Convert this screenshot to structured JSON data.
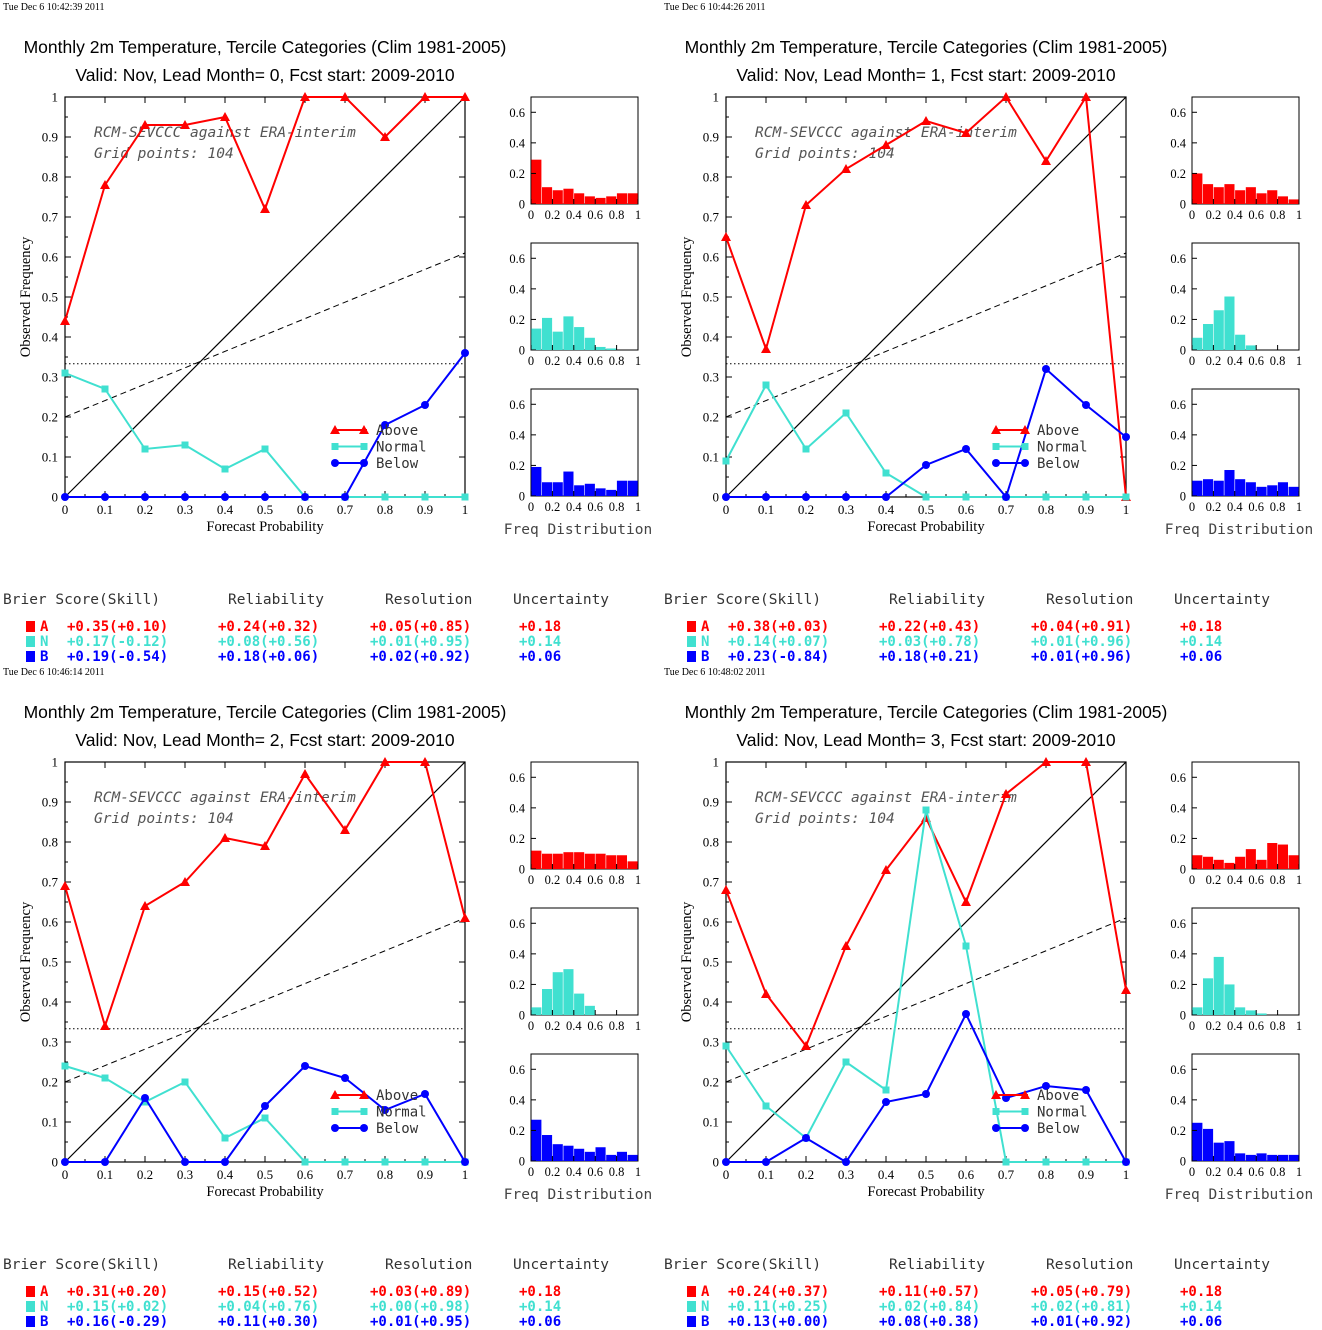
{
  "colors": {
    "above": "#ff0000",
    "normal": "#40e0d0",
    "below": "#0000ff",
    "axis": "#000000"
  },
  "legend": {
    "above": "Above",
    "normal": "Normal",
    "below": "Below"
  },
  "annotation": {
    "line1": "RCM-SEVCCC against ERA-interim",
    "line2": "Grid points:  104"
  },
  "axis_labels": {
    "x": "Forecast Probability",
    "y": "Observed Frequency",
    "hist": "Freq Distribution"
  },
  "score_headers": {
    "brier": "Brier Score(Skill)",
    "reliability": "Reliability",
    "resolution": "Resolution",
    "uncertainty": "Uncertainty"
  },
  "category_letters": {
    "above": "A",
    "normal": "N",
    "below": "B"
  },
  "ticks": {
    "x": [
      "0",
      "0.1",
      "0.2",
      "0.3",
      "0.4",
      "0.5",
      "0.6",
      "0.7",
      "0.8",
      "0.9",
      "1"
    ],
    "y": [
      "0",
      "0.1",
      "0.2",
      "0.3",
      "0.4",
      "0.5",
      "0.6",
      "0.7",
      "0.8",
      "0.9",
      "1"
    ],
    "hx": [
      "0",
      "0.2",
      "0.4",
      "0.6",
      "0.8",
      "1"
    ],
    "hy": [
      "0",
      "0.2",
      "0.4",
      "0.6"
    ]
  },
  "chart_data": [
    {
      "type": "line",
      "timestamp": "Tue Dec  6 10:42:39 2011",
      "title": "Monthly 2m Temperature, Tercile Categories (Clim 1981-2005)",
      "subtitle": "Valid: Nov, Lead Month= 0, Fcst start: 2009-2010",
      "xlabel": "Forecast Probability",
      "ylabel": "Observed Frequency",
      "xlim": [
        0,
        1
      ],
      "ylim": [
        0,
        1
      ],
      "x": [
        0,
        0.1,
        0.2,
        0.3,
        0.4,
        0.5,
        0.6,
        0.7,
        0.8,
        0.9,
        1
      ],
      "series": [
        {
          "name": "Above",
          "values": [
            0.44,
            0.78,
            0.93,
            0.93,
            0.95,
            0.72,
            1.0,
            1.0,
            0.9,
            1.0,
            1.0
          ]
        },
        {
          "name": "Normal",
          "values": [
            0.31,
            0.27,
            0.12,
            0.13,
            0.07,
            0.12,
            0,
            0,
            0,
            0,
            0
          ]
        },
        {
          "name": "Below",
          "values": [
            0,
            0,
            0,
            0,
            0,
            0,
            0,
            0,
            0.18,
            0.23,
            0.36
          ]
        }
      ],
      "histograms": {
        "above": [
          0.29,
          0.11,
          0.09,
          0.1,
          0.07,
          0.05,
          0.04,
          0.05,
          0.07,
          0.07
        ],
        "normal": [
          0.14,
          0.21,
          0.12,
          0.22,
          0.15,
          0.08,
          0.02,
          0.01,
          0,
          0
        ],
        "below": [
          0.19,
          0.09,
          0.09,
          0.16,
          0.07,
          0.08,
          0.05,
          0.04,
          0.1,
          0.1
        ]
      },
      "scores": {
        "above": {
          "brier": "+0.35(+0.10)",
          "reliability": "+0.24(+0.32)",
          "resolution": "+0.05(+0.85)",
          "uncertainty": "+0.18"
        },
        "normal": {
          "brier": "+0.17(-0.12)",
          "reliability": "+0.08(+0.56)",
          "resolution": "+0.01(+0.95)",
          "uncertainty": "+0.14"
        },
        "below": {
          "brier": "+0.19(-0.54)",
          "reliability": "+0.18(+0.06)",
          "resolution": "+0.02(+0.92)",
          "uncertainty": "+0.06"
        }
      }
    },
    {
      "type": "line",
      "timestamp": "Tue Dec  6 10:44:26 2011",
      "title": "Monthly 2m Temperature, Tercile Categories (Clim 1981-2005)",
      "subtitle": "Valid: Nov, Lead Month= 1, Fcst start: 2009-2010",
      "xlabel": "Forecast Probability",
      "ylabel": "Observed Frequency",
      "xlim": [
        0,
        1
      ],
      "ylim": [
        0,
        1
      ],
      "x": [
        0,
        0.1,
        0.2,
        0.3,
        0.4,
        0.5,
        0.6,
        0.7,
        0.8,
        0.9,
        1
      ],
      "series": [
        {
          "name": "Above",
          "values": [
            0.65,
            0.37,
            0.73,
            0.82,
            0.88,
            0.94,
            0.91,
            1.0,
            0.84,
            1.0,
            0
          ]
        },
        {
          "name": "Normal",
          "values": [
            0.09,
            0.28,
            0.12,
            0.21,
            0.06,
            0,
            0,
            0,
            0,
            0,
            0
          ]
        },
        {
          "name": "Below",
          "values": [
            0,
            0,
            0,
            0,
            0,
            0.08,
            0.12,
            0,
            0.32,
            0.23,
            0.15
          ]
        }
      ],
      "histograms": {
        "above": [
          0.2,
          0.13,
          0.11,
          0.13,
          0.09,
          0.11,
          0.07,
          0.09,
          0.05,
          0.03
        ],
        "normal": [
          0.08,
          0.17,
          0.26,
          0.35,
          0.1,
          0.03,
          0,
          0,
          0,
          0
        ],
        "below": [
          0.1,
          0.11,
          0.1,
          0.17,
          0.11,
          0.09,
          0.06,
          0.07,
          0.09,
          0.06
        ]
      },
      "scores": {
        "above": {
          "brier": "+0.38(+0.03)",
          "reliability": "+0.22(+0.43)",
          "resolution": "+0.04(+0.91)",
          "uncertainty": "+0.18"
        },
        "normal": {
          "brier": "+0.14(+0.07)",
          "reliability": "+0.03(+0.78)",
          "resolution": "+0.01(+0.96)",
          "uncertainty": "+0.14"
        },
        "below": {
          "brier": "+0.23(-0.84)",
          "reliability": "+0.18(+0.21)",
          "resolution": "+0.01(+0.96)",
          "uncertainty": "+0.06"
        }
      }
    },
    {
      "type": "line",
      "timestamp": "Tue Dec  6 10:46:14 2011",
      "title": "Monthly 2m Temperature, Tercile Categories (Clim 1981-2005)",
      "subtitle": "Valid: Nov, Lead Month= 2, Fcst start: 2009-2010",
      "xlabel": "Forecast Probability",
      "ylabel": "Observed Frequency",
      "xlim": [
        0,
        1
      ],
      "ylim": [
        0,
        1
      ],
      "x": [
        0,
        0.1,
        0.2,
        0.3,
        0.4,
        0.5,
        0.6,
        0.7,
        0.8,
        0.9,
        1
      ],
      "series": [
        {
          "name": "Above",
          "values": [
            0.69,
            0.34,
            0.64,
            0.7,
            0.81,
            0.79,
            0.97,
            0.83,
            1.0,
            1.0,
            0.61
          ]
        },
        {
          "name": "Normal",
          "values": [
            0.24,
            0.21,
            0.15,
            0.2,
            0.06,
            0.11,
            0,
            0,
            0,
            0,
            0
          ]
        },
        {
          "name": "Below",
          "values": [
            0,
            0,
            0.16,
            0,
            0,
            0.14,
            0.24,
            0.21,
            0.13,
            0.17,
            0
          ]
        }
      ],
      "histograms": {
        "above": [
          0.12,
          0.1,
          0.1,
          0.11,
          0.11,
          0.1,
          0.1,
          0.09,
          0.09,
          0.05
        ],
        "normal": [
          0.05,
          0.17,
          0.28,
          0.3,
          0.14,
          0.06,
          0,
          0,
          0,
          0
        ],
        "below": [
          0.27,
          0.17,
          0.11,
          0.1,
          0.08,
          0.06,
          0.09,
          0.04,
          0.06,
          0.04
        ]
      },
      "scores": {
        "above": {
          "brier": "+0.31(+0.20)",
          "reliability": "+0.15(+0.52)",
          "resolution": "+0.03(+0.89)",
          "uncertainty": "+0.18"
        },
        "normal": {
          "brier": "+0.15(+0.02)",
          "reliability": "+0.04(+0.76)",
          "resolution": "+0.00(+0.98)",
          "uncertainty": "+0.14"
        },
        "below": {
          "brier": "+0.16(-0.29)",
          "reliability": "+0.11(+0.30)",
          "resolution": "+0.01(+0.95)",
          "uncertainty": "+0.06"
        }
      }
    },
    {
      "type": "line",
      "timestamp": "Tue Dec  6 10:48:02 2011",
      "title": "Monthly 2m Temperature, Tercile Categories (Clim 1981-2005)",
      "subtitle": "Valid: Nov, Lead Month= 3, Fcst start: 2009-2010",
      "xlabel": "Forecast Probability",
      "ylabel": "Observed Frequency",
      "xlim": [
        0,
        1
      ],
      "ylim": [
        0,
        1
      ],
      "x": [
        0,
        0.1,
        0.2,
        0.3,
        0.4,
        0.5,
        0.6,
        0.7,
        0.8,
        0.9,
        1
      ],
      "series": [
        {
          "name": "Above",
          "values": [
            0.68,
            0.42,
            0.29,
            0.54,
            0.73,
            0.86,
            0.65,
            0.92,
            1.0,
            1.0,
            0.43
          ]
        },
        {
          "name": "Normal",
          "values": [
            0.29,
            0.14,
            0.06,
            0.25,
            0.18,
            0.88,
            0.54,
            0,
            0,
            0,
            0
          ]
        },
        {
          "name": "Below",
          "values": [
            0,
            0,
            0.06,
            0,
            0.15,
            0.17,
            0.37,
            0.16,
            0.19,
            0.18,
            0
          ]
        }
      ],
      "histograms": {
        "above": [
          0.09,
          0.08,
          0.06,
          0.04,
          0.08,
          0.13,
          0.06,
          0.17,
          0.16,
          0.09
        ],
        "normal": [
          0.05,
          0.24,
          0.38,
          0.2,
          0.05,
          0.03,
          0.01,
          0,
          0,
          0
        ],
        "below": [
          0.25,
          0.21,
          0.12,
          0.13,
          0.05,
          0.04,
          0.05,
          0.04,
          0.04,
          0.04
        ]
      },
      "scores": {
        "above": {
          "brier": "+0.24(+0.37)",
          "reliability": "+0.11(+0.57)",
          "resolution": "+0.05(+0.79)",
          "uncertainty": "+0.18"
        },
        "normal": {
          "brier": "+0.11(+0.25)",
          "reliability": "+0.02(+0.84)",
          "resolution": "+0.02(+0.81)",
          "uncertainty": "+0.14"
        },
        "below": {
          "brier": "+0.13(+0.00)",
          "reliability": "+0.08(+0.38)",
          "resolution": "+0.01(+0.92)",
          "uncertainty": "+0.06"
        }
      }
    }
  ]
}
